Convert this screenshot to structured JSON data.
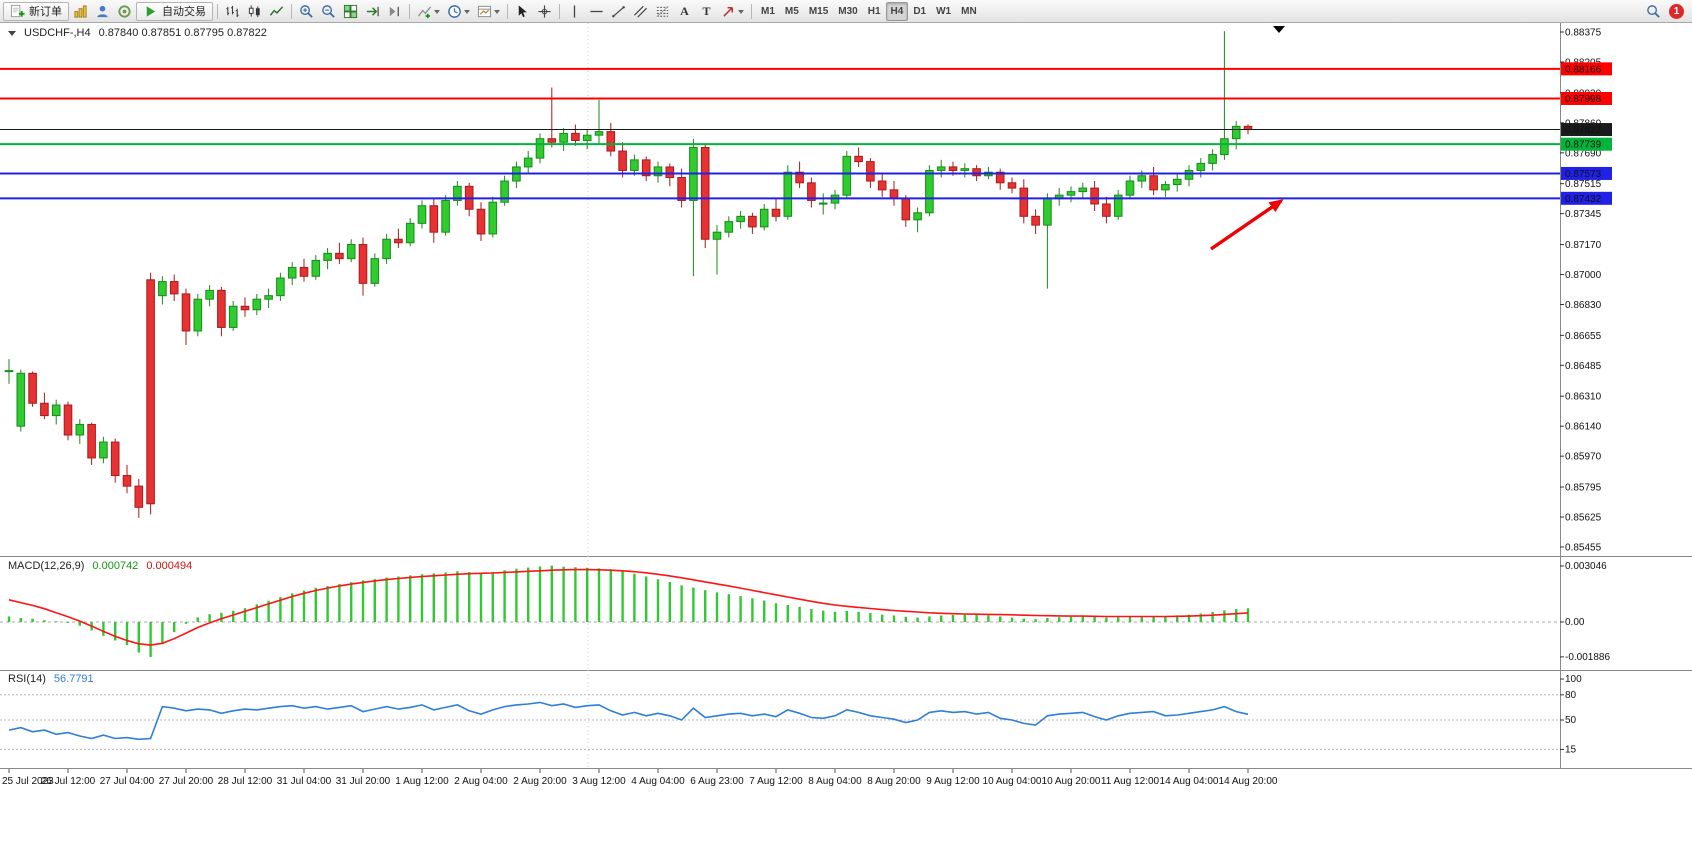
{
  "toolbar": {
    "new_order": "新订单",
    "auto_trading": "自动交易",
    "timeframes": [
      "M1",
      "M5",
      "M15",
      "M30",
      "H1",
      "H4",
      "D1",
      "W1",
      "MN"
    ],
    "active_timeframe": "H4",
    "notification_badge": "1",
    "text_tool": "A",
    "label_tool": "T"
  },
  "chart_data": {
    "type": "candlestick",
    "symbol": "USDCHF-,H4",
    "ohlc_readout": "0.87840 0.87851 0.87795 0.87822",
    "colors": {
      "up": "#2fcc2f",
      "up_border": "#1a8a1a",
      "down": "#e63232",
      "down_border": "#aa1a1a"
    },
    "y_axis": {
      "min": 0.85455,
      "max": 0.88375,
      "labels": [
        "0.88375",
        "0.88205",
        "0.88030",
        "0.87860",
        "0.87690",
        "0.87515",
        "0.87345",
        "0.87170",
        "0.87000",
        "0.86830",
        "0.86655",
        "0.86485",
        "0.86310",
        "0.86140",
        "0.85970",
        "0.85795",
        "0.85625",
        "0.85455"
      ]
    },
    "price_levels": [
      {
        "label": "0.88166",
        "price": 0.88166,
        "color": "#ff0000",
        "style": "line"
      },
      {
        "label": "0.87998",
        "price": 0.87998,
        "color": "#ff0000",
        "style": "line"
      },
      {
        "label": "0.87822",
        "price": 0.87822,
        "color": "#1a1a1a",
        "style": "current-price"
      },
      {
        "label": "0.87739",
        "price": 0.87739,
        "color": "#00b43c",
        "style": "line"
      },
      {
        "label": "0.87573",
        "price": 0.87573,
        "color": "#2020e6",
        "style": "line"
      },
      {
        "label": "0.87432",
        "price": 0.87432,
        "color": "#2020e6",
        "style": "line"
      }
    ],
    "candles": [
      [
        0.8645,
        0.8652,
        0.8638,
        0.86455
      ],
      [
        0.8614,
        0.8646,
        0.8611,
        0.8644
      ],
      [
        0.8644,
        0.8645,
        0.8625,
        0.8627
      ],
      [
        0.8627,
        0.8633,
        0.8618,
        0.862
      ],
      [
        0.862,
        0.8629,
        0.8615,
        0.8626
      ],
      [
        0.8626,
        0.8628,
        0.8606,
        0.8609
      ],
      [
        0.8609,
        0.8618,
        0.8604,
        0.8615
      ],
      [
        0.8615,
        0.8616,
        0.8592,
        0.8596
      ],
      [
        0.8596,
        0.8608,
        0.8593,
        0.8605
      ],
      [
        0.8605,
        0.8607,
        0.8582,
        0.8586
      ],
      [
        0.8586,
        0.8592,
        0.8576,
        0.858
      ],
      [
        0.858,
        0.8584,
        0.8562,
        0.8568
      ],
      [
        0.8697,
        0.8701,
        0.8564,
        0.857
      ],
      [
        0.8688,
        0.8699,
        0.8683,
        0.8696
      ],
      [
        0.8696,
        0.87,
        0.8685,
        0.8689
      ],
      [
        0.8689,
        0.8692,
        0.866,
        0.8668
      ],
      [
        0.8668,
        0.8689,
        0.8665,
        0.8686
      ],
      [
        0.8686,
        0.8694,
        0.8682,
        0.8691
      ],
      [
        0.8691,
        0.8693,
        0.8665,
        0.867
      ],
      [
        0.867,
        0.8685,
        0.8668,
        0.8682
      ],
      [
        0.8682,
        0.8687,
        0.8676,
        0.868
      ],
      [
        0.868,
        0.8689,
        0.8677,
        0.8686
      ],
      [
        0.8686,
        0.8692,
        0.8681,
        0.8688
      ],
      [
        0.8688,
        0.8701,
        0.8685,
        0.8698
      ],
      [
        0.8698,
        0.8707,
        0.8694,
        0.8704
      ],
      [
        0.8704,
        0.8709,
        0.8696,
        0.8699
      ],
      [
        0.8699,
        0.8711,
        0.8697,
        0.8708
      ],
      [
        0.8708,
        0.8715,
        0.8703,
        0.8712
      ],
      [
        0.8712,
        0.8718,
        0.8706,
        0.8709
      ],
      [
        0.8709,
        0.872,
        0.8707,
        0.8717
      ],
      [
        0.8717,
        0.8721,
        0.8688,
        0.8695
      ],
      [
        0.8695,
        0.8712,
        0.8693,
        0.8709
      ],
      [
        0.8709,
        0.8723,
        0.8706,
        0.872
      ],
      [
        0.872,
        0.8726,
        0.8715,
        0.8718
      ],
      [
        0.8718,
        0.8732,
        0.8716,
        0.8729
      ],
      [
        0.8729,
        0.8742,
        0.8726,
        0.8739
      ],
      [
        0.8739,
        0.8743,
        0.8718,
        0.8724
      ],
      [
        0.8724,
        0.8745,
        0.8722,
        0.8742
      ],
      [
        0.8742,
        0.8753,
        0.8739,
        0.875
      ],
      [
        0.875,
        0.8752,
        0.8733,
        0.8737
      ],
      [
        0.8737,
        0.8741,
        0.8719,
        0.8723
      ],
      [
        0.8723,
        0.8744,
        0.8721,
        0.8741
      ],
      [
        0.8741,
        0.8756,
        0.8739,
        0.8753
      ],
      [
        0.8753,
        0.8764,
        0.8749,
        0.8761
      ],
      [
        0.8761,
        0.877,
        0.8757,
        0.8766
      ],
      [
        0.8766,
        0.878,
        0.8763,
        0.8777
      ],
      [
        0.8777,
        0.8806,
        0.8772,
        0.8775
      ],
      [
        0.8775,
        0.8783,
        0.877,
        0.878
      ],
      [
        0.878,
        0.8785,
        0.8773,
        0.8776
      ],
      [
        0.8776,
        0.8782,
        0.8771,
        0.8779
      ],
      [
        0.8779,
        0.8799,
        0.8774,
        0.8781
      ],
      [
        0.8781,
        0.8786,
        0.8767,
        0.877
      ],
      [
        0.877,
        0.8775,
        0.8755,
        0.8759
      ],
      [
        0.8759,
        0.8768,
        0.8756,
        0.8765
      ],
      [
        0.8765,
        0.8767,
        0.8753,
        0.8756
      ],
      [
        0.8756,
        0.8764,
        0.8752,
        0.8761
      ],
      [
        0.8761,
        0.8763,
        0.875,
        0.8755
      ],
      [
        0.8755,
        0.876,
        0.8738,
        0.8742
      ],
      [
        0.8742,
        0.8777,
        0.8699,
        0.8772
      ],
      [
        0.8772,
        0.8774,
        0.8715,
        0.872
      ],
      [
        0.872,
        0.8728,
        0.87,
        0.8724
      ],
      [
        0.8724,
        0.8733,
        0.8721,
        0.873
      ],
      [
        0.873,
        0.8736,
        0.8726,
        0.8733
      ],
      [
        0.8733,
        0.8735,
        0.8723,
        0.8727
      ],
      [
        0.8727,
        0.874,
        0.8725,
        0.8737
      ],
      [
        0.8737,
        0.8743,
        0.873,
        0.8733
      ],
      [
        0.8733,
        0.8762,
        0.8731,
        0.8758
      ],
      [
        0.8758,
        0.8764,
        0.8749,
        0.8752
      ],
      [
        0.8752,
        0.8755,
        0.8738,
        0.8742
      ],
      [
        0.874,
        0.8746,
        0.8734,
        0.87405
      ],
      [
        0.87405,
        0.8748,
        0.8737,
        0.8745
      ],
      [
        0.8745,
        0.877,
        0.8743,
        0.8767
      ],
      [
        0.8767,
        0.8772,
        0.8761,
        0.8764
      ],
      [
        0.8764,
        0.8766,
        0.8749,
        0.8753
      ],
      [
        0.8753,
        0.8757,
        0.8744,
        0.8748
      ],
      [
        0.8748,
        0.8753,
        0.8739,
        0.8743
      ],
      [
        0.8743,
        0.8745,
        0.8727,
        0.8731
      ],
      [
        0.8731,
        0.8738,
        0.8724,
        0.8735
      ],
      [
        0.8735,
        0.8762,
        0.8733,
        0.8759
      ],
      [
        0.8759,
        0.8765,
        0.8755,
        0.8761
      ],
      [
        0.8761,
        0.8764,
        0.8756,
        0.8759
      ],
      [
        0.8759,
        0.8763,
        0.8755,
        0.876
      ],
      [
        0.876,
        0.8762,
        0.8753,
        0.8756
      ],
      [
        0.8756,
        0.8761,
        0.8754,
        0.8758
      ],
      [
        0.8758,
        0.876,
        0.8748,
        0.8752
      ],
      [
        0.8752,
        0.8755,
        0.8746,
        0.8749
      ],
      [
        0.8749,
        0.8754,
        0.8729,
        0.8733
      ],
      [
        0.8733,
        0.8737,
        0.8723,
        0.8728
      ],
      [
        0.8728,
        0.8746,
        0.8692,
        0.8743
      ],
      [
        0.8743,
        0.8749,
        0.8739,
        0.8745
      ],
      [
        0.8745,
        0.875,
        0.8741,
        0.8747
      ],
      [
        0.8747,
        0.8752,
        0.8743,
        0.8749
      ],
      [
        0.8749,
        0.8753,
        0.8736,
        0.874
      ],
      [
        0.874,
        0.8744,
        0.8729,
        0.8733
      ],
      [
        0.8733,
        0.8748,
        0.8731,
        0.8745
      ],
      [
        0.8745,
        0.8756,
        0.8743,
        0.8753
      ],
      [
        0.8753,
        0.8759,
        0.8749,
        0.8756
      ],
      [
        0.8756,
        0.8761,
        0.8745,
        0.8748
      ],
      [
        0.8748,
        0.8753,
        0.8744,
        0.8751
      ],
      [
        0.8751,
        0.8757,
        0.8747,
        0.8754
      ],
      [
        0.8754,
        0.8762,
        0.875,
        0.8759
      ],
      [
        0.8759,
        0.8766,
        0.8755,
        0.8763
      ],
      [
        0.8763,
        0.8771,
        0.8759,
        0.8768
      ],
      [
        0.8768,
        0.8838,
        0.8765,
        0.8777
      ],
      [
        0.8777,
        0.8787,
        0.8771,
        0.8784
      ],
      [
        0.8784,
        0.87851,
        0.87795,
        0.87822
      ]
    ],
    "time_labels": [
      "25 Jul 2023",
      "26 Jul 12:00",
      "27 Jul 04:00",
      "27 Jul 20:00",
      "28 Jul 12:00",
      "31 Jul 04:00",
      "31 Jul 20:00",
      "1 Aug 12:00",
      "2 Aug 04:00",
      "2 Aug 20:00",
      "3 Aug 12:00",
      "4 Aug 04:00",
      "6 Aug 23:00",
      "7 Aug 12:00",
      "8 Aug 04:00",
      "8 Aug 20:00",
      "9 Aug 12:00",
      "10 Aug 04:00",
      "10 Aug 20:00",
      "11 Aug 12:00",
      "14 Aug 04:00",
      "14 Aug 20:00"
    ],
    "annotations": [
      {
        "type": "arrow",
        "color": "#f00000",
        "direction": "up-right",
        "near_price": 0.87432
      }
    ]
  },
  "macd": {
    "label": "MACD(12,26,9)",
    "value_main": "0.000742",
    "value_signal": "0.000494",
    "axis_labels": [
      "0.003046",
      "0.00",
      "-0.001886"
    ],
    "colors": {
      "histogram": "#32c832",
      "signal": "#ff1414"
    },
    "histogram": [
      0.0003,
      0.00022,
      0.00018,
      0.0001,
      4e-05,
      -5e-05,
      -0.0002,
      -0.00045,
      -0.00075,
      -0.001,
      -0.00125,
      -0.00165,
      -0.00189,
      -0.0012,
      -0.00055,
      -0.0001,
      0.00025,
      0.00042,
      0.0005,
      0.0006,
      0.00075,
      0.00095,
      0.00115,
      0.00135,
      0.00155,
      0.0017,
      0.00185,
      0.00195,
      0.00205,
      0.00215,
      0.00225,
      0.00232,
      0.0024,
      0.00246,
      0.00252,
      0.00258,
      0.00263,
      0.00268,
      0.00274,
      0.0027,
      0.00266,
      0.00271,
      0.0028,
      0.00288,
      0.00294,
      0.003,
      0.003046,
      0.00299,
      0.00296,
      0.00293,
      0.0029,
      0.00285,
      0.00275,
      0.00261,
      0.00246,
      0.00231,
      0.00216,
      0.00198,
      0.00186,
      0.00172,
      0.0016,
      0.0015,
      0.0014,
      0.00128,
      0.00116,
      0.00101,
      0.00092,
      0.00082,
      0.0007,
      0.00061,
      0.00055,
      0.0006,
      0.00055,
      0.00048,
      0.0004,
      0.00035,
      0.00028,
      0.00024,
      0.0003,
      0.00035,
      0.00038,
      0.0004,
      0.00038,
      0.00036,
      0.0003,
      0.00024,
      0.00018,
      0.00015,
      0.00022,
      0.00026,
      0.00028,
      0.0003,
      0.00028,
      0.00024,
      0.00026,
      0.0003,
      0.00032,
      0.0003,
      0.00032,
      0.00036,
      0.0004,
      0.00046,
      0.00054,
      0.00063,
      0.0007,
      0.000742
    ],
    "signal": [
      0.0012,
      0.00105,
      0.0009,
      0.00072,
      0.0005,
      0.00028,
      5e-05,
      -0.00022,
      -0.0005,
      -0.00078,
      -0.001,
      -0.00118,
      -0.00125,
      -0.00115,
      -0.0009,
      -0.0006,
      -0.0003,
      -5e-05,
      0.00018,
      0.00038,
      0.00058,
      0.00078,
      0.00098,
      0.00118,
      0.00138,
      0.00155,
      0.0017,
      0.00183,
      0.00195,
      0.00205,
      0.00214,
      0.00222,
      0.00229,
      0.00235,
      0.00241,
      0.00246,
      0.0025,
      0.00254,
      0.00258,
      0.00261,
      0.00263,
      0.00265,
      0.00268,
      0.00271,
      0.00274,
      0.00277,
      0.0028,
      0.00282,
      0.00283,
      0.00283,
      0.00282,
      0.0028,
      0.00277,
      0.00272,
      0.00266,
      0.00258,
      0.00249,
      0.00239,
      0.00228,
      0.00217,
      0.00206,
      0.00195,
      0.00183,
      0.00171,
      0.00159,
      0.00147,
      0.00135,
      0.00123,
      0.00112,
      0.00101,
      0.00092,
      0.00085,
      0.00079,
      0.00073,
      0.00067,
      0.00062,
      0.00058,
      0.00054,
      0.0005,
      0.00047,
      0.00045,
      0.00043,
      0.00042,
      0.00041,
      0.0004,
      0.00039,
      0.00037,
      0.00035,
      0.00034,
      0.00033,
      0.00032,
      0.00032,
      0.00031,
      0.0003,
      0.0003,
      0.0003,
      0.0003,
      0.0003,
      0.0003,
      0.00031,
      0.00032,
      0.00034,
      0.00037,
      0.00041,
      0.00045,
      0.000494
    ]
  },
  "rsi": {
    "label": "RSI(14)",
    "value": "56.7791",
    "color": "#2f7ed8",
    "axis_labels": [
      "100",
      "80",
      "50",
      "15"
    ],
    "levels": [
      80,
      50,
      15
    ],
    "values": [
      38,
      41,
      36,
      38,
      33,
      35,
      31,
      28,
      32,
      28,
      29,
      27,
      28,
      66,
      64,
      61,
      63,
      62,
      58,
      61,
      63,
      62,
      64,
      66,
      67,
      64,
      66,
      63,
      65,
      67,
      60,
      63,
      66,
      63,
      65,
      68,
      62,
      65,
      68,
      61,
      57,
      62,
      66,
      68,
      69,
      71,
      67,
      69,
      65,
      67,
      68,
      61,
      56,
      59,
      55,
      58,
      55,
      50,
      64,
      53,
      55,
      57,
      58,
      55,
      57,
      54,
      62,
      58,
      53,
      52,
      55,
      62,
      59,
      55,
      53,
      51,
      47,
      50,
      59,
      61,
      59,
      60,
      57,
      59,
      52,
      50,
      46,
      44,
      55,
      57,
      58,
      59,
      54,
      50,
      55,
      58,
      59,
      60,
      55,
      56,
      58,
      60,
      62,
      66,
      60,
      56.78
    ]
  }
}
